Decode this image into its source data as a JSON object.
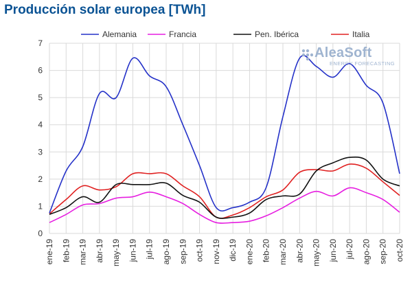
{
  "colors": {
    "title": "#0b5394",
    "Alemania": "#2431c8",
    "Francia": "#e61de0",
    "Pen. Ibérica": "#111111",
    "Italia": "#e02020",
    "grid": "#d9d9d9",
    "logo": "#9fb4d0"
  },
  "logo": {
    "name": "AleaSoft",
    "subtitle": "ENERGY FORECASTING"
  },
  "chart_data": {
    "type": "line",
    "title": "Producción solar europea [TWh]",
    "xlabel": "",
    "ylabel": "",
    "ylim": [
      0,
      7
    ],
    "yticks": [
      0,
      1,
      2,
      3,
      4,
      5,
      6,
      7
    ],
    "grid": true,
    "legend_position": "top",
    "categories": [
      "ene-19",
      "feb-19",
      "mar-19",
      "abr-19",
      "may-19",
      "jun-19",
      "jul-19",
      "ago-19",
      "sep-19",
      "oct-19",
      "nov-19",
      "dic-19",
      "ene-20",
      "feb-20",
      "mar-20",
      "abr-20",
      "may-20",
      "jun-20",
      "jul-20",
      "ago-20",
      "sep-20",
      "oct-20"
    ],
    "series": [
      {
        "name": "Alemania",
        "values": [
          0.75,
          2.3,
          3.2,
          5.15,
          5.0,
          6.45,
          5.8,
          5.4,
          4.0,
          2.5,
          0.95,
          0.95,
          1.15,
          1.7,
          4.3,
          6.45,
          6.15,
          5.75,
          6.25,
          5.45,
          4.8,
          2.2
        ]
      },
      {
        "name": "Francia",
        "values": [
          0.4,
          0.7,
          1.05,
          1.1,
          1.3,
          1.35,
          1.52,
          1.35,
          1.1,
          0.7,
          0.4,
          0.4,
          0.45,
          0.65,
          0.95,
          1.3,
          1.55,
          1.38,
          1.68,
          1.5,
          1.25,
          0.78
        ]
      },
      {
        "name": "Pen. Ibérica",
        "values": [
          0.7,
          0.95,
          1.35,
          1.15,
          1.8,
          1.8,
          1.8,
          1.85,
          1.4,
          1.15,
          0.6,
          0.6,
          0.75,
          1.25,
          1.38,
          1.45,
          2.3,
          2.6,
          2.8,
          2.7,
          2.0,
          1.75
        ]
      },
      {
        "name": "Italia",
        "values": [
          0.72,
          1.25,
          1.75,
          1.6,
          1.72,
          2.2,
          2.2,
          2.2,
          1.75,
          1.35,
          0.6,
          0.68,
          0.95,
          1.35,
          1.6,
          2.25,
          2.35,
          2.3,
          2.55,
          2.4,
          1.9,
          1.4
        ]
      }
    ]
  }
}
